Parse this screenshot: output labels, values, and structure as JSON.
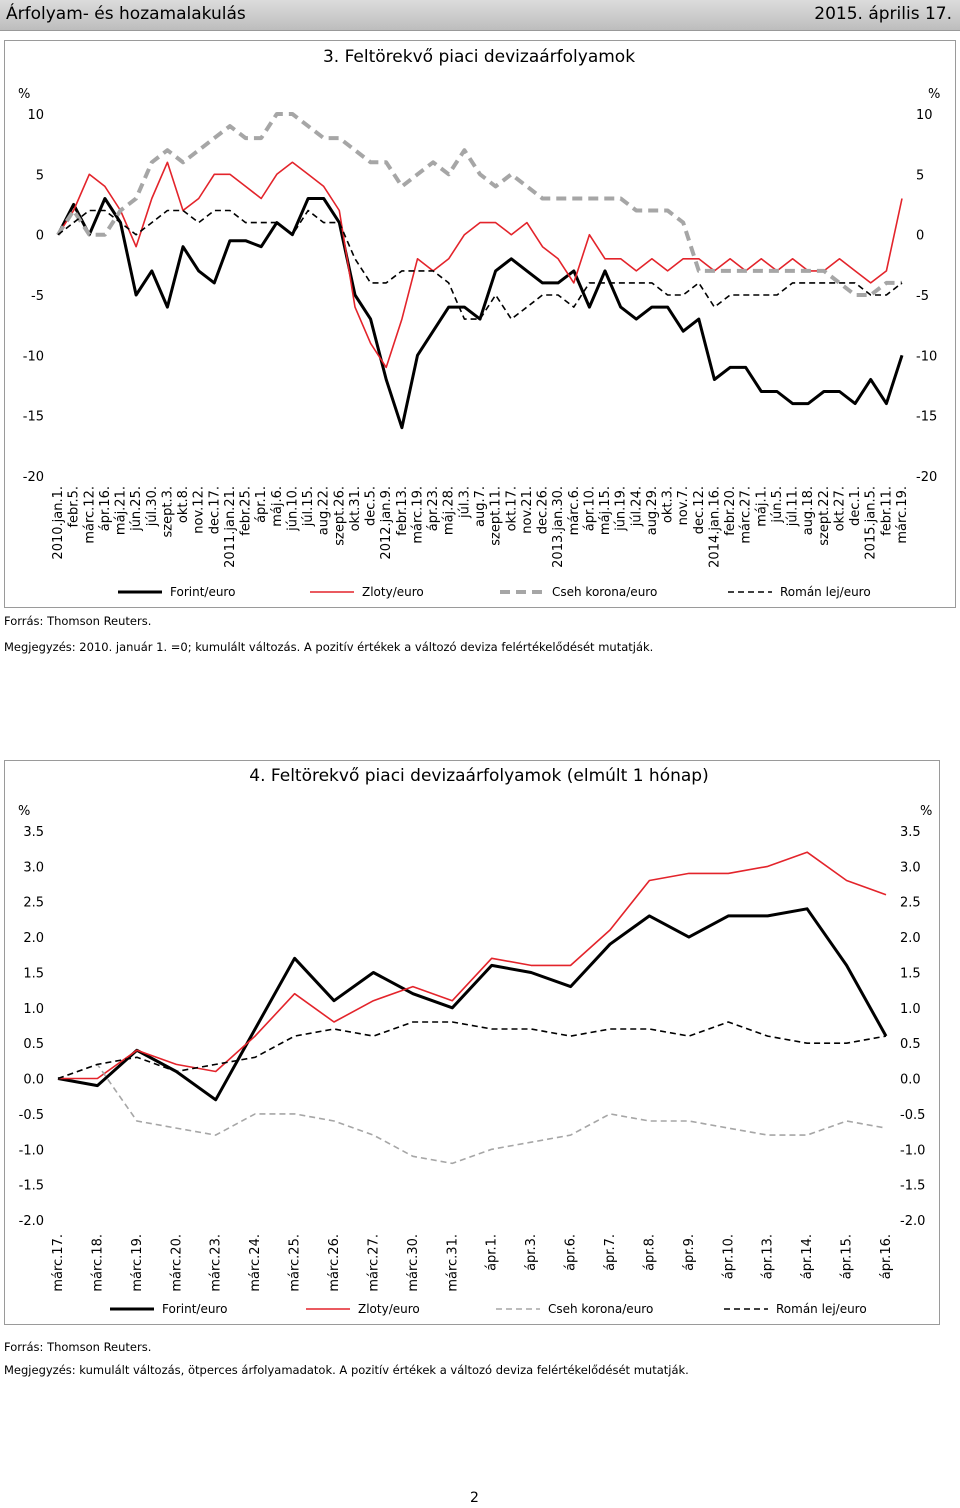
{
  "header": {
    "left": "Árfolyam- és hozamalakulás",
    "right": "2015. április 17."
  },
  "page_number": "2",
  "charts": [
    {
      "title": "3. Feltörekvő piaci devizaárfolyamok",
      "unit_left": "%",
      "unit_right": "%",
      "source": "Forrás: Thomson Reuters.",
      "note": "Megjegyzés: 2010. január 1. =0; kumulált változás. A pozitív értékek a változó deviza felértékelődését mutatják."
    },
    {
      "title": "4. Feltörekvő piaci devizaárfolyamok (elmúlt 1 hónap)",
      "unit_left": "%",
      "unit_right": "%",
      "source": "Forrás: Thomson Reuters.",
      "note": "Megjegyzés: kumulált változás, ötperces árfolyamadatok. A pozitív értékek a változó deviza felértékelődését mutatják."
    }
  ],
  "chart_data": [
    {
      "type": "line",
      "title": "3. Feltörekvő piaci devizaárfolyamok",
      "ylim": [
        -20,
        10
      ],
      "yticks": [
        "10",
        "5",
        "0",
        "-5",
        "-10",
        "-15",
        "-20"
      ],
      "categories": [
        "2010.jan.1.",
        "febr.5.",
        "márc.12.",
        "ápr.16.",
        "máj.21.",
        "jún.25.",
        "júl.30.",
        "szept.3.",
        "okt.8.",
        "nov.12.",
        "dec.17.",
        "2011.jan.21.",
        "febr.25.",
        "ápr.1.",
        "máj.6.",
        "jún.10.",
        "júl.15.",
        "aug.22.",
        "szept.26.",
        "okt.31.",
        "dec.5.",
        "2012.jan.9.",
        "febr.13.",
        "márc.19.",
        "ápr.23.",
        "máj.28.",
        "júl.3.",
        "aug.7.",
        "szept.11.",
        "okt.17.",
        "nov.21.",
        "dec.26.",
        "2013.jan.30.",
        "márc.6.",
        "ápr.10.",
        "máj.15.",
        "jún.19.",
        "júl.24.",
        "aug.29.",
        "okt.3.",
        "nov.7.",
        "dec.12.",
        "2014.jan.16.",
        "febr.20.",
        "márc.27.",
        "máj.1.",
        "jún.5.",
        "júl.11.",
        "aug.18.",
        "szept.22.",
        "okt.27.",
        "dec.1.",
        "2015.jan.5.",
        "febr.11.",
        "márc.19."
      ],
      "legend_position": "bottom",
      "series": [
        {
          "name": "Forint/euro",
          "color": "#000000",
          "style": "solid-thick",
          "values": [
            0,
            2.5,
            0,
            3,
            1,
            -5,
            -3,
            -6,
            -1,
            -3,
            -4,
            -0.5,
            -0.5,
            -1,
            1,
            0,
            3,
            3,
            1,
            -5,
            -7,
            -12,
            -16,
            -10,
            -8,
            -6,
            -6,
            -7,
            -3,
            -2,
            -3,
            -4,
            -4,
            -3,
            -6,
            -3,
            -6,
            -7,
            -6,
            -6,
            -8,
            -7,
            -12,
            -11,
            -11,
            -13,
            -13,
            -14,
            -14,
            -13,
            -13,
            -14,
            -12,
            -14,
            -10
          ]
        },
        {
          "name": "Zloty/euro",
          "color": "#e3242b",
          "style": "solid",
          "values": [
            0,
            2,
            5,
            4,
            2,
            -1,
            3,
            6,
            2,
            3,
            5,
            5,
            4,
            3,
            5,
            6,
            5,
            4,
            2,
            -6,
            -9,
            -11,
            -7,
            -2,
            -3,
            -2,
            0,
            1,
            1,
            0,
            1,
            -1,
            -2,
            -4,
            0,
            -2,
            -2,
            -3,
            -2,
            -3,
            -2,
            -2,
            -3,
            -2,
            -3,
            -2,
            -3,
            -2,
            -3,
            -3,
            -2,
            -3,
            -4,
            -3,
            3
          ]
        },
        {
          "name": "Cseh korona/euro",
          "color": "#a6a6a6",
          "style": "dashed-thick",
          "values": [
            0,
            2,
            0,
            0,
            2,
            3,
            6,
            7,
            6,
            7,
            8,
            9,
            8,
            8,
            10,
            10,
            9,
            8,
            8,
            7,
            6,
            6,
            4,
            5,
            6,
            5,
            7,
            5,
            4,
            5,
            4,
            3,
            3,
            3,
            3,
            3,
            3,
            2,
            2,
            2,
            1,
            -3,
            -3,
            -3,
            -3,
            -3,
            -3,
            -3,
            -3,
            -3,
            -4,
            -5,
            -5,
            -4,
            -4
          ]
        },
        {
          "name": "Román lej/euro",
          "color": "#000000",
          "style": "dashed",
          "values": [
            0,
            1,
            2,
            2,
            1,
            0,
            1,
            2,
            2,
            1,
            2,
            2,
            1,
            1,
            1,
            0,
            2,
            1,
            1,
            -2,
            -4,
            -4,
            -3,
            -3,
            -3,
            -4,
            -7,
            -7,
            -5,
            -7,
            -6,
            -5,
            -5,
            -6,
            -4,
            -4,
            -4,
            -4,
            -4,
            -5,
            -5,
            -4,
            -6,
            -5,
            -5,
            -5,
            -5,
            -4,
            -4,
            -4,
            -4,
            -4,
            -5,
            -5,
            -4
          ]
        }
      ]
    },
    {
      "type": "line",
      "title": "4. Feltörekvő piaci devizaárfolyamok (elmúlt 1 hónap)",
      "ylim": [
        -2,
        3.5
      ],
      "yticks": [
        "3.5",
        "3.0",
        "2.5",
        "2.0",
        "1.5",
        "1.0",
        "0.5",
        "0.0",
        "-0.5",
        "-1.0",
        "-1.5",
        "-2.0"
      ],
      "categories": [
        "márc.17.",
        "márc.18.",
        "márc.19.",
        "márc.20.",
        "márc.23.",
        "márc.24.",
        "márc.25.",
        "márc.26.",
        "márc.27.",
        "márc.30.",
        "márc.31.",
        "ápr.1.",
        "ápr.3.",
        "ápr.6.",
        "ápr.7.",
        "ápr.8.",
        "ápr.9.",
        "ápr.10.",
        "ápr.13.",
        "ápr.14.",
        "ápr.15.",
        "ápr.16."
      ],
      "legend_position": "bottom",
      "series": [
        {
          "name": "Forint/euro",
          "color": "#000000",
          "style": "solid-thick",
          "values": [
            0,
            -0.1,
            0.4,
            0.1,
            -0.3,
            0.7,
            1.7,
            1.1,
            1.5,
            1.2,
            1.0,
            1.6,
            1.5,
            1.3,
            1.9,
            2.3,
            2.0,
            2.3,
            2.3,
            2.4,
            1.6,
            0.6
          ]
        },
        {
          "name": "Zloty/euro",
          "color": "#e3242b",
          "style": "solid",
          "values": [
            0,
            0,
            0.4,
            0.2,
            0.1,
            0.6,
            1.2,
            0.8,
            1.1,
            1.3,
            1.1,
            1.7,
            1.6,
            1.6,
            2.1,
            2.8,
            2.9,
            2.9,
            3.0,
            3.2,
            2.8,
            2.6
          ]
        },
        {
          "name": "Cseh korona/euro",
          "color": "#a6a6a6",
          "style": "dashed",
          "values": [
            0,
            0.2,
            -0.6,
            -0.7,
            -0.8,
            -0.5,
            -0.5,
            -0.6,
            -0.8,
            -1.1,
            -1.2,
            -1.0,
            -0.9,
            -0.8,
            -0.5,
            -0.6,
            -0.6,
            -0.7,
            -0.8,
            -0.8,
            -0.6,
            -0.7
          ]
        },
        {
          "name": "Román lej/euro",
          "color": "#000000",
          "style": "dashed",
          "values": [
            0,
            0.2,
            0.3,
            0.1,
            0.2,
            0.3,
            0.6,
            0.7,
            0.6,
            0.8,
            0.8,
            0.7,
            0.7,
            0.6,
            0.7,
            0.7,
            0.6,
            0.8,
            0.6,
            0.5,
            0.5,
            0.6
          ]
        }
      ]
    }
  ]
}
